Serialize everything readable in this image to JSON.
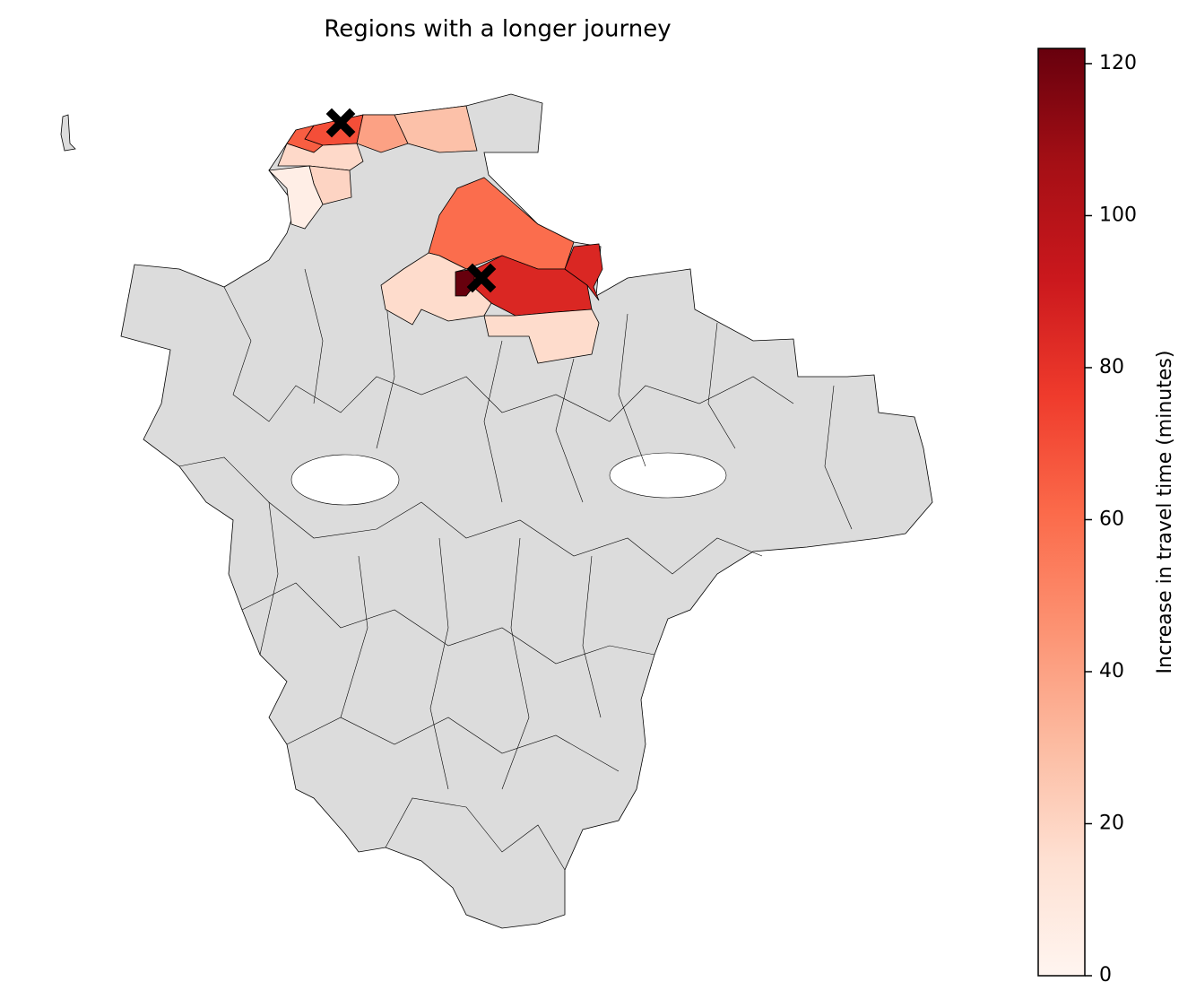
{
  "chart_data": {
    "type": "choropleth",
    "title": "Regions with a longer journey",
    "colorbar_label": "Increase in travel time (minutes)",
    "colormap": [
      "#fff5f0",
      "#fee0d2",
      "#fcbba1",
      "#fc9272",
      "#fb6a4a",
      "#ef3b2c",
      "#cb181d",
      "#a50f15",
      "#67000d"
    ],
    "values": [
      70,
      65,
      40,
      28,
      18,
      20,
      5,
      60,
      85,
      85,
      122,
      17,
      17
    ],
    "clim": [
      0,
      122
    ],
    "cticks": [
      0,
      20,
      40,
      60,
      80,
      100,
      120
    ]
  }
}
